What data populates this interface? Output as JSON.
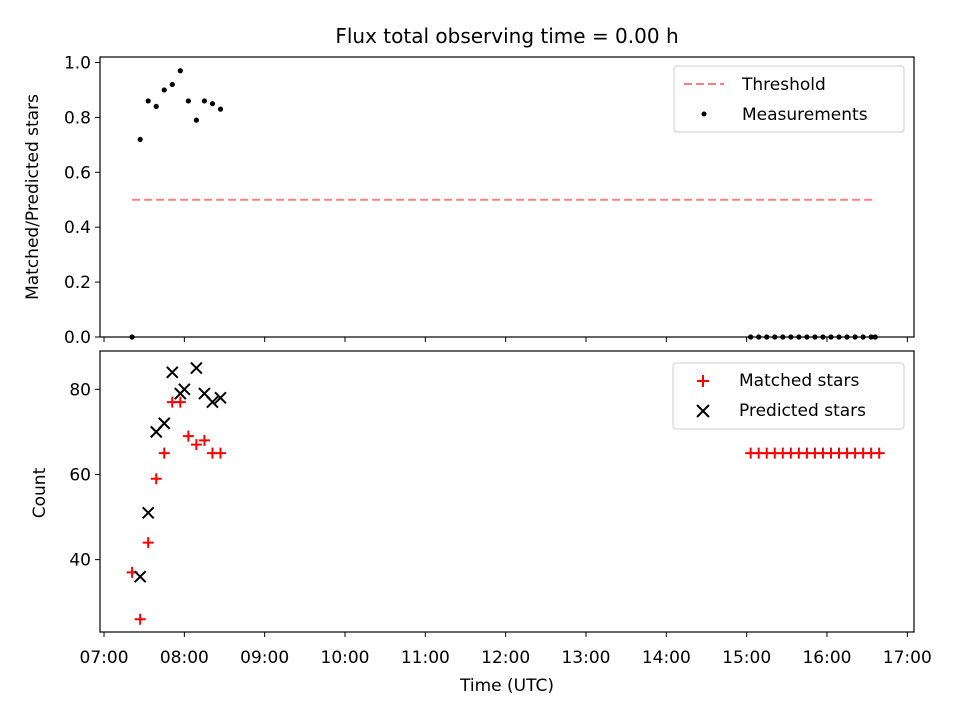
{
  "title": "Flux total observing time = 0.00 h",
  "colors": {
    "threshold": "#ff7f7f",
    "measurements": "#000000",
    "matched": "#ff0000",
    "predicted": "#000000"
  },
  "chart_data": [
    {
      "type": "scatter",
      "panel": "top",
      "ylabel": "Matched/Predicted stars",
      "ylim": [
        0.0,
        1.02
      ],
      "yticks": [
        0.0,
        0.2,
        0.4,
        0.6,
        0.8,
        1.0
      ],
      "ytick_labels": [
        "0.0",
        "0.2",
        "0.4",
        "0.6",
        "0.8",
        "1.0"
      ],
      "xlim": [
        "06:57",
        "17:05"
      ],
      "legend_position": "top-right",
      "series": [
        {
          "name": "Threshold",
          "kind": "dashed-line",
          "color": "#ff7f7f",
          "points": [
            [
              "07:21",
              0.5
            ],
            [
              "16:36",
              0.5
            ]
          ]
        },
        {
          "name": "Measurements",
          "kind": "dot",
          "color": "#000000",
          "points": [
            [
              "07:21",
              0.0
            ],
            [
              "07:27",
              0.72
            ],
            [
              "07:33",
              0.86
            ],
            [
              "07:39",
              0.84
            ],
            [
              "07:45",
              0.9
            ],
            [
              "07:51",
              0.92
            ],
            [
              "07:57",
              0.97
            ],
            [
              "08:03",
              0.86
            ],
            [
              "08:09",
              0.79
            ],
            [
              "08:15",
              0.86
            ],
            [
              "08:21",
              0.85
            ],
            [
              "08:27",
              0.83
            ],
            [
              "15:03",
              0.0
            ],
            [
              "15:09",
              0.0
            ],
            [
              "15:15",
              0.0
            ],
            [
              "15:21",
              0.0
            ],
            [
              "15:27",
              0.0
            ],
            [
              "15:33",
              0.0
            ],
            [
              "15:39",
              0.0
            ],
            [
              "15:45",
              0.0
            ],
            [
              "15:51",
              0.0
            ],
            [
              "15:57",
              0.0
            ],
            [
              "16:03",
              0.0
            ],
            [
              "16:09",
              0.0
            ],
            [
              "16:15",
              0.0
            ],
            [
              "16:21",
              0.0
            ],
            [
              "16:27",
              0.0
            ],
            [
              "16:33",
              0.0
            ],
            [
              "16:36",
              0.0
            ]
          ]
        }
      ]
    },
    {
      "type": "scatter",
      "panel": "bottom",
      "ylabel": "Count",
      "xlabel": "Time (UTC)",
      "ylim": [
        23,
        89
      ],
      "yticks": [
        40,
        60,
        80
      ],
      "ytick_labels": [
        "40",
        "60",
        "80"
      ],
      "xlim": [
        "06:57",
        "17:05"
      ],
      "xticks": [
        "07:00",
        "08:00",
        "09:00",
        "10:00",
        "11:00",
        "12:00",
        "13:00",
        "14:00",
        "15:00",
        "16:00",
        "17:00"
      ],
      "xtick_labels": [
        "07:00",
        "08:00",
        "09:00",
        "10:00",
        "11:00",
        "12:00",
        "13:00",
        "14:00",
        "15:00",
        "16:00",
        "17:00"
      ],
      "legend_position": "top-right",
      "series": [
        {
          "name": "Matched stars",
          "kind": "plus",
          "color": "#ff0000",
          "points": [
            [
              "07:21",
              37
            ],
            [
              "07:27",
              26
            ],
            [
              "07:33",
              44
            ],
            [
              "07:39",
              59
            ],
            [
              "07:45",
              65
            ],
            [
              "07:51",
              77
            ],
            [
              "07:57",
              77
            ],
            [
              "08:03",
              69
            ],
            [
              "08:09",
              67
            ],
            [
              "08:15",
              68
            ],
            [
              "08:21",
              65
            ],
            [
              "08:27",
              65
            ],
            [
              "15:03",
              65
            ],
            [
              "15:09",
              65
            ],
            [
              "15:15",
              65
            ],
            [
              "15:21",
              65
            ],
            [
              "15:27",
              65
            ],
            [
              "15:33",
              65
            ],
            [
              "15:39",
              65
            ],
            [
              "15:45",
              65
            ],
            [
              "15:51",
              65
            ],
            [
              "15:57",
              65
            ],
            [
              "16:03",
              65
            ],
            [
              "16:09",
              65
            ],
            [
              "16:15",
              65
            ],
            [
              "16:21",
              65
            ],
            [
              "16:27",
              65
            ],
            [
              "16:33",
              65
            ],
            [
              "16:39",
              65
            ]
          ]
        },
        {
          "name": "Predicted stars",
          "kind": "x",
          "color": "#000000",
          "points": [
            [
              "07:27",
              36
            ],
            [
              "07:33",
              51
            ],
            [
              "07:39",
              70
            ],
            [
              "07:45",
              72
            ],
            [
              "07:51",
              84
            ],
            [
              "07:57",
              79
            ],
            [
              "08:00",
              80
            ],
            [
              "08:09",
              85
            ],
            [
              "08:15",
              79
            ],
            [
              "08:21",
              77
            ],
            [
              "08:27",
              78
            ]
          ]
        }
      ]
    }
  ]
}
